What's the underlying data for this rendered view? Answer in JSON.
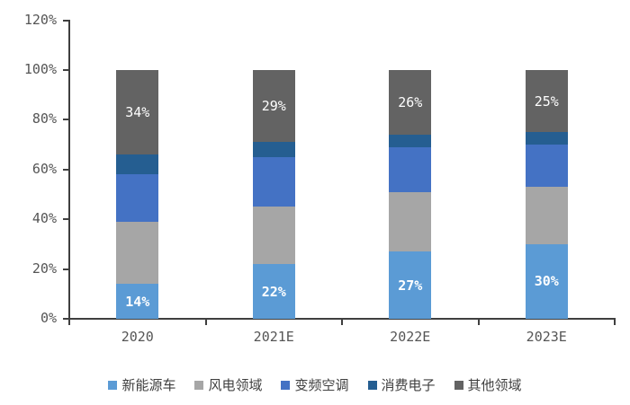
{
  "chart_data": {
    "type": "bar",
    "subtype": "stacked-100-percent",
    "title": "",
    "xlabel": "",
    "ylabel": "",
    "categories": [
      "2020",
      "2021E",
      "2022E",
      "2023E"
    ],
    "series": [
      {
        "name": "新能源车",
        "color": "#5B9BD5",
        "values": [
          14,
          22,
          27,
          30
        ],
        "data_labels": [
          "14%",
          "22%",
          "27%",
          "30%"
        ],
        "label_bold": true
      },
      {
        "name": "风电领域",
        "color": "#A6A6A6",
        "values": [
          25,
          23,
          24,
          23
        ],
        "data_labels": null,
        "label_bold": false
      },
      {
        "name": "变频空调",
        "color": "#4472C4",
        "values": [
          19,
          20,
          18,
          17
        ],
        "data_labels": null,
        "label_bold": false
      },
      {
        "name": "消费电子",
        "color": "#255E91",
        "values": [
          8,
          6,
          5,
          5
        ],
        "data_labels": null,
        "label_bold": false
      },
      {
        "name": "其他领域",
        "color": "#636363",
        "values": [
          34,
          29,
          26,
          25
        ],
        "data_labels": [
          "34%",
          "29%",
          "26%",
          "25%"
        ],
        "label_bold": false
      }
    ],
    "y_axis": {
      "tick_labels": [
        "0%",
        "20%",
        "40%",
        "60%",
        "80%",
        "100%",
        "120%"
      ],
      "min": 0,
      "max": 120,
      "grid": false
    },
    "legend": {
      "position": "bottom",
      "entries": [
        "新能源车",
        "风电领域",
        "变频空调",
        "消费电子",
        "其他领域"
      ]
    },
    "style": {
      "axis_color": "#3f3f3f",
      "tick_label_color": "#555555",
      "data_label_color": "#ffffff",
      "background": "#ffffff"
    }
  }
}
